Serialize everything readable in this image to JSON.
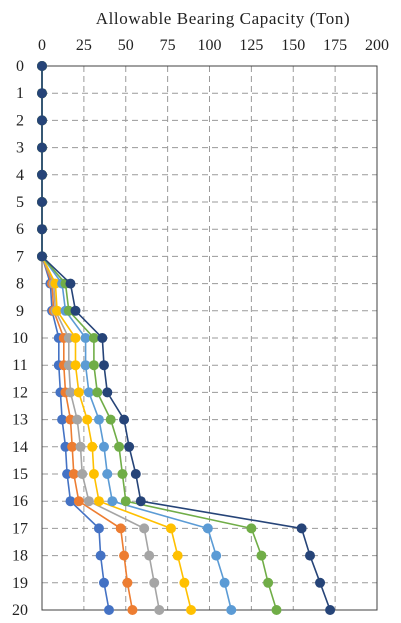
{
  "chart_data": {
    "type": "line",
    "title": "Allowable Bearing Capacity (Ton)",
    "x_axis": {
      "position": "top",
      "ticks": [
        0,
        25,
        50,
        75,
        100,
        125,
        150,
        175,
        200
      ],
      "range": [
        0,
        200
      ],
      "grid": "dashed"
    },
    "y_axis": {
      "orientation": "inverted",
      "ticks": [
        0,
        1,
        2,
        3,
        4,
        5,
        6,
        7,
        8,
        9,
        10,
        11,
        12,
        13,
        14,
        15,
        16,
        17,
        18,
        19,
        20
      ],
      "range": [
        0,
        20
      ],
      "grid": "dashed"
    },
    "y": [
      0,
      1,
      2,
      3,
      4,
      5,
      6,
      7,
      8,
      9,
      10,
      11,
      12,
      13,
      14,
      15,
      16,
      17,
      18,
      19,
      20
    ],
    "series": [
      {
        "color": "#4472C4",
        "x": [
          0,
          0,
          0,
          0,
          0,
          0,
          0,
          0,
          5,
          6,
          10,
          10,
          11,
          12,
          14,
          15,
          17,
          34,
          35,
          37,
          40
        ]
      },
      {
        "color": "#ED7D31",
        "x": [
          0,
          0,
          0,
          0,
          0,
          0,
          0,
          0,
          6,
          7,
          13,
          13,
          14,
          17,
          18,
          19,
          22,
          47,
          49,
          51,
          54
        ]
      },
      {
        "color": "#A5A5A5",
        "x": [
          0,
          0,
          0,
          0,
          0,
          0,
          0,
          0,
          7,
          8,
          16,
          16,
          17,
          21,
          23,
          24,
          28,
          61,
          64,
          67,
          70
        ]
      },
      {
        "color": "#FFC000",
        "x": [
          0,
          0,
          0,
          0,
          0,
          0,
          0,
          0,
          8,
          9,
          20,
          20,
          22,
          27,
          30,
          31,
          34,
          77,
          81,
          85,
          89
        ]
      },
      {
        "color": "#5B9BD5",
        "x": [
          0,
          0,
          0,
          0,
          0,
          0,
          0,
          0,
          12,
          14,
          26,
          26,
          28,
          34,
          37,
          39,
          42,
          99,
          104,
          109,
          113
        ]
      },
      {
        "color": "#70AD47",
        "x": [
          0,
          0,
          0,
          0,
          0,
          0,
          0,
          0,
          14,
          16,
          31,
          31,
          33,
          41,
          46,
          48,
          50,
          125,
          131,
          135,
          140
        ]
      },
      {
        "color": "#264478",
        "x": [
          0,
          0,
          0,
          0,
          0,
          0,
          0,
          0,
          17,
          20,
          36,
          37,
          39,
          49,
          52,
          56,
          59,
          155,
          160,
          166,
          172
        ]
      }
    ]
  }
}
